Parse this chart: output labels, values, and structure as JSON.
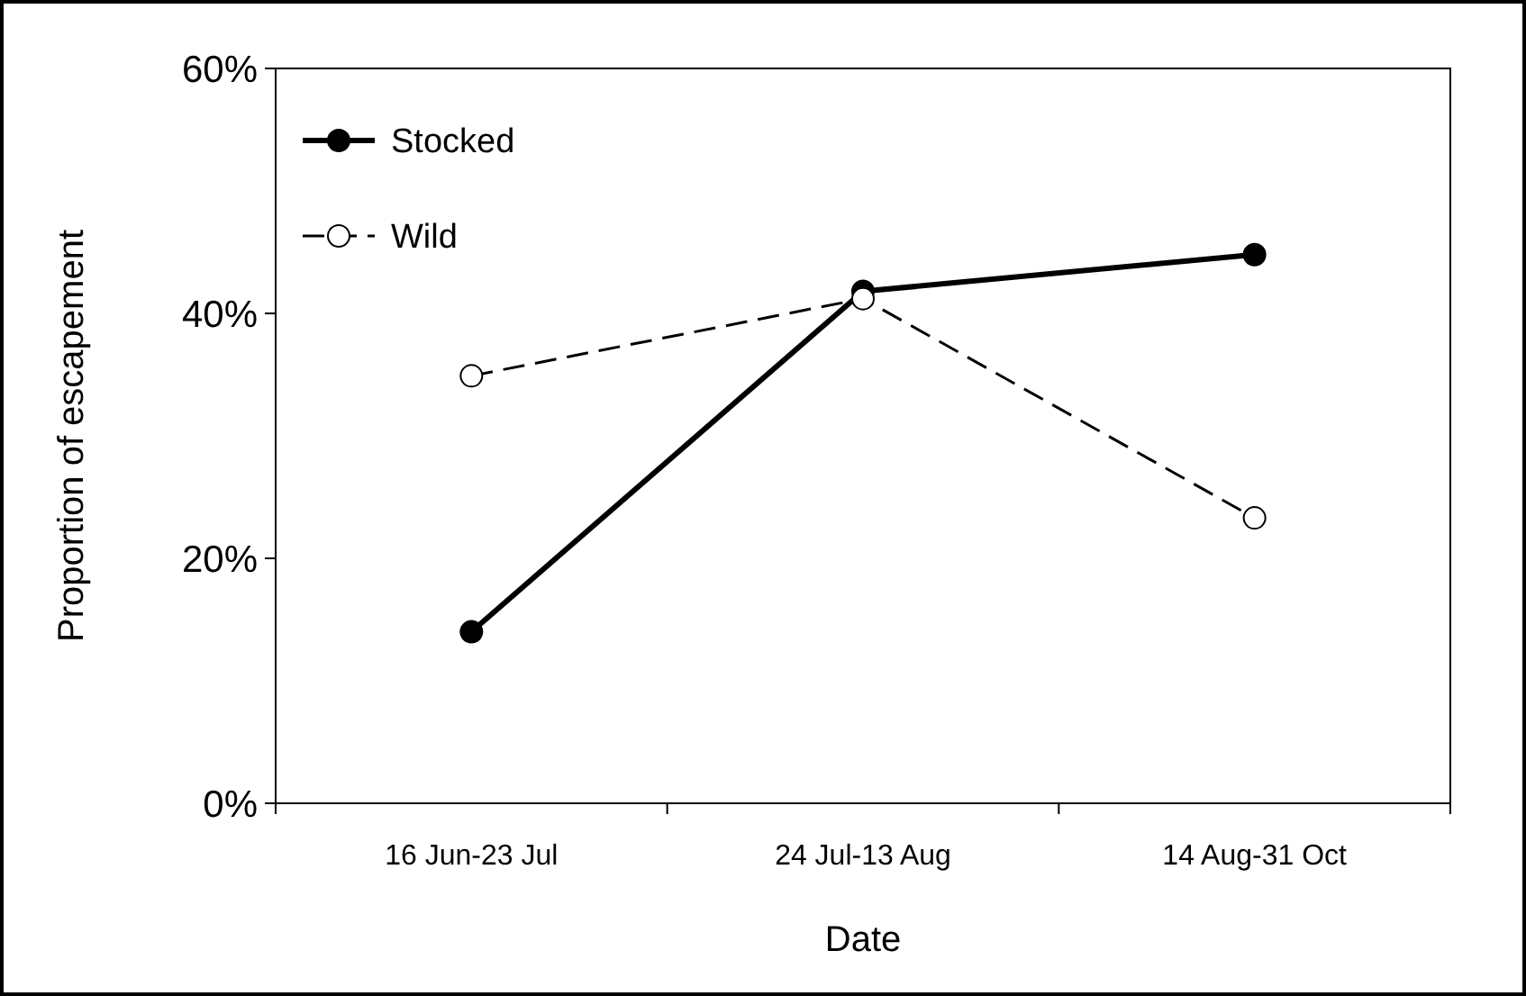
{
  "chart_data": {
    "type": "line",
    "xlabel": "Date",
    "ylabel": "Proportion of escapement",
    "categories": [
      "16 Jun-23 Jul",
      "24 Jul-13 Aug",
      "14 Aug-31 Oct"
    ],
    "series": [
      {
        "name": "Stocked",
        "color": "#000000",
        "values": [
          14,
          41.8,
          44.8
        ],
        "marker": "circle",
        "line_style": "solid"
      },
      {
        "name": "Wild",
        "color": "#000000",
        "values": [
          34.9,
          41.2,
          23.3
        ],
        "marker": "circle",
        "line_style": "dashed"
      }
    ],
    "ylim": [
      0,
      60
    ],
    "yticks": [
      {
        "value": 0,
        "label": "0%"
      },
      {
        "value": 20,
        "label": "20%"
      },
      {
        "value": 40,
        "label": "40%"
      },
      {
        "value": 60,
        "label": "60%"
      }
    ],
    "grid": false,
    "legend": "top left"
  }
}
